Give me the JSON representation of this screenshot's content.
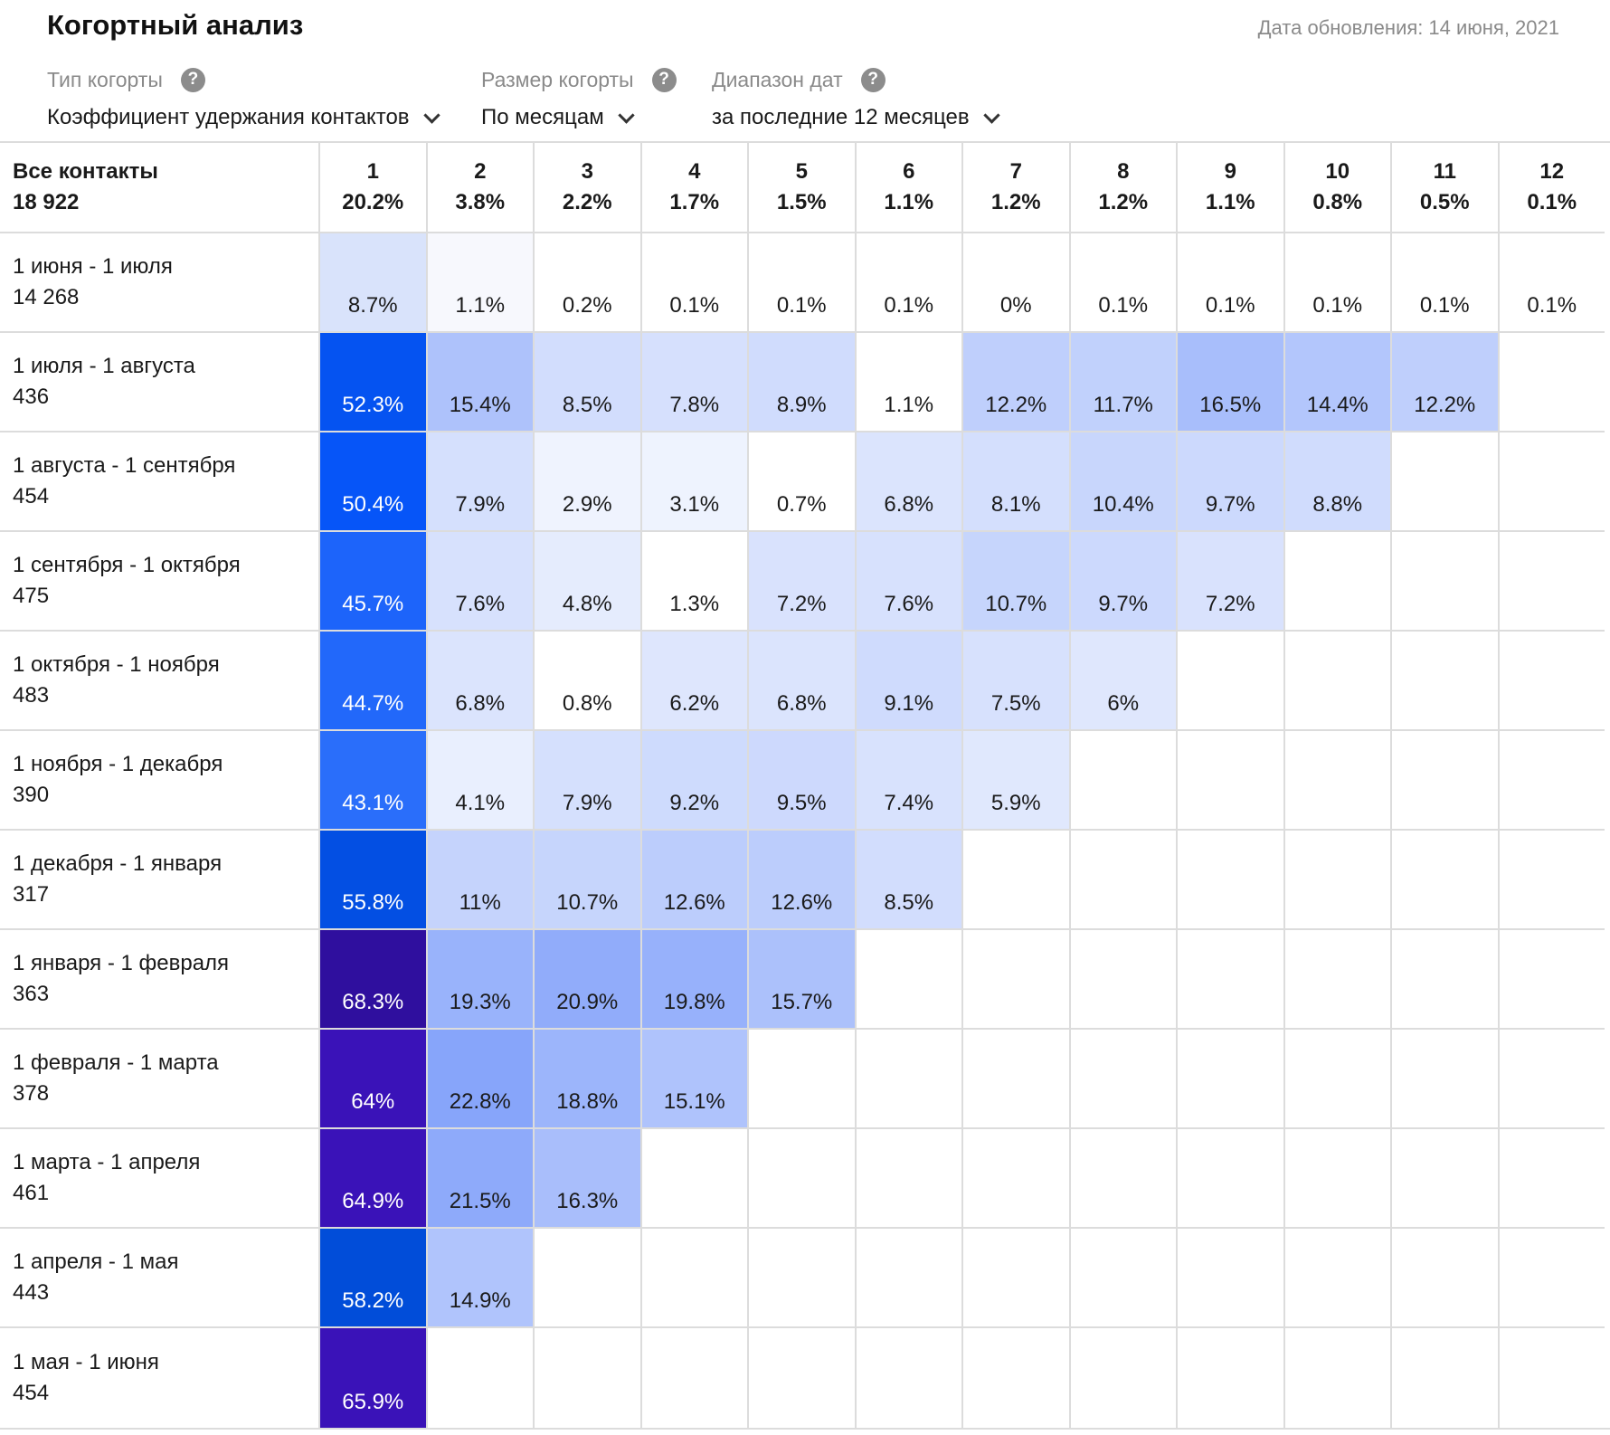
{
  "header": {
    "title": "Когортный анализ",
    "updated_label": "Дата обновления:",
    "updated_date": "14 июня, 2021"
  },
  "filters": {
    "cohort_type": {
      "label": "Тип когорты",
      "value": "Коэффициент удержания контактов"
    },
    "cohort_size": {
      "label": "Размер когорты",
      "value": "По месяцам"
    },
    "date_range": {
      "label": "Диапазон дат",
      "value": "за последние 12 месяцев"
    }
  },
  "table": {
    "total_label": "Все контакты",
    "total_count": "18 922",
    "columns": [
      {
        "n": "1",
        "pct": "20.2%"
      },
      {
        "n": "2",
        "pct": "3.8%"
      },
      {
        "n": "3",
        "pct": "2.2%"
      },
      {
        "n": "4",
        "pct": "1.7%"
      },
      {
        "n": "5",
        "pct": "1.5%"
      },
      {
        "n": "6",
        "pct": "1.1%"
      },
      {
        "n": "7",
        "pct": "1.2%"
      },
      {
        "n": "8",
        "pct": "1.2%"
      },
      {
        "n": "9",
        "pct": "1.1%"
      },
      {
        "n": "10",
        "pct": "0.8%"
      },
      {
        "n": "11",
        "pct": "0.5%"
      },
      {
        "n": "12",
        "pct": "0.1%"
      }
    ],
    "rows": [
      {
        "label": "1 июня - 1 июля",
        "count": "14 268",
        "values": [
          "8.7%",
          "1.1%",
          "0.2%",
          "0.1%",
          "0.1%",
          "0.1%",
          "0%",
          "0.1%",
          "0.1%",
          "0.1%",
          "0.1%",
          "0.1%"
        ]
      },
      {
        "label": "1 июля - 1 августа",
        "count": "436",
        "values": [
          "52.3%",
          "15.4%",
          "8.5%",
          "7.8%",
          "8.9%",
          "1.1%",
          "12.2%",
          "11.7%",
          "16.5%",
          "14.4%",
          "12.2%"
        ]
      },
      {
        "label": "1 августа - 1 сентября",
        "count": "454",
        "values": [
          "50.4%",
          "7.9%",
          "2.9%",
          "3.1%",
          "0.7%",
          "6.8%",
          "8.1%",
          "10.4%",
          "9.7%",
          "8.8%"
        ]
      },
      {
        "label": "1 сентября - 1 октября",
        "count": "475",
        "values": [
          "45.7%",
          "7.6%",
          "4.8%",
          "1.3%",
          "7.2%",
          "7.6%",
          "10.7%",
          "9.7%",
          "7.2%"
        ]
      },
      {
        "label": "1 октября - 1 ноября",
        "count": "483",
        "values": [
          "44.7%",
          "6.8%",
          "0.8%",
          "6.2%",
          "6.8%",
          "9.1%",
          "7.5%",
          "6%"
        ]
      },
      {
        "label": "1 ноября - 1 декабря",
        "count": "390",
        "values": [
          "43.1%",
          "4.1%",
          "7.9%",
          "9.2%",
          "9.5%",
          "7.4%",
          "5.9%"
        ]
      },
      {
        "label": "1 декабря - 1 января",
        "count": "317",
        "values": [
          "55.8%",
          "11%",
          "10.7%",
          "12.6%",
          "12.6%",
          "8.5%"
        ]
      },
      {
        "label": "1 января - 1 февраля",
        "count": "363",
        "values": [
          "68.3%",
          "19.3%",
          "20.9%",
          "19.8%",
          "15.7%"
        ]
      },
      {
        "label": "1 февраля - 1 марта",
        "count": "378",
        "values": [
          "64%",
          "22.8%",
          "18.8%",
          "15.1%"
        ]
      },
      {
        "label": "1 марта - 1 апреля",
        "count": "461",
        "values": [
          "64.9%",
          "21.5%",
          "16.3%"
        ]
      },
      {
        "label": "1 апреля - 1 мая",
        "count": "443",
        "values": [
          "58.2%",
          "14.9%"
        ]
      },
      {
        "label": "1 мая - 1 июня",
        "count": "454",
        "values": [
          "65.9%"
        ]
      }
    ]
  }
}
